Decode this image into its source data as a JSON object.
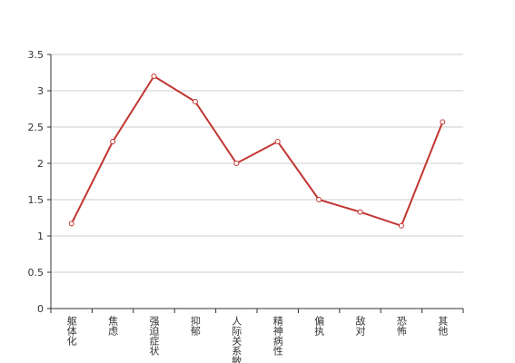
{
  "chart_data": {
    "type": "line",
    "categories": [
      "躯体化",
      "焦虑",
      "强迫症状",
      "抑郁",
      "人际关系敏感",
      "精神病性",
      "偏执",
      "敌对",
      "恐怖",
      "其他"
    ],
    "series": [
      {
        "color": "#c23531",
        "values": [
          1.17,
          2.3,
          3.2,
          2.85,
          2.0,
          2.3,
          1.5,
          1.33,
          1.14,
          2.57
        ]
      }
    ],
    "ylim": [
      0,
      3.5
    ],
    "yticks": [
      0,
      0.5,
      1,
      1.5,
      2,
      2.5,
      3,
      3.5
    ],
    "grid": true
  }
}
